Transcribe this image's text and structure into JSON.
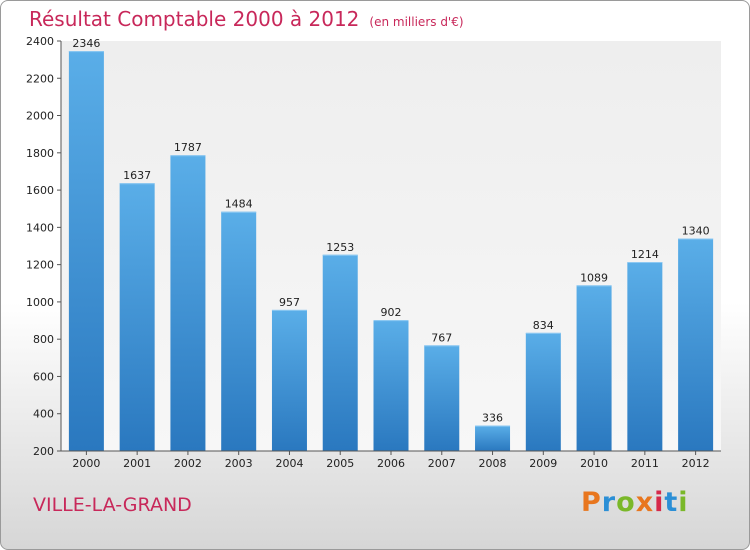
{
  "title": "Résultat Comptable 2000 à 2012",
  "unit": "(en milliers d'€)",
  "commune": "VILLE-LA-GRAND",
  "logo": "Proxiti",
  "colors": {
    "bar_top": "#5aaee8",
    "bar_bottom": "#2a78bf",
    "title": "#c8285a"
  },
  "chart_data": {
    "type": "bar",
    "title": "Résultat Comptable 2000 à 2012",
    "subtitle": "(en milliers d'€)",
    "xlabel": "",
    "ylabel": "",
    "ylim": [
      200,
      2400
    ],
    "yticks": [
      200,
      400,
      600,
      800,
      1000,
      1200,
      1400,
      1600,
      1800,
      2000,
      2200,
      2400
    ],
    "grid": false,
    "categories": [
      "2000",
      "2001",
      "2002",
      "2003",
      "2004",
      "2005",
      "2006",
      "2007",
      "2008",
      "2009",
      "2010",
      "2011",
      "2012"
    ],
    "values": [
      2346,
      1637,
      1787,
      1484,
      957,
      1253,
      902,
      767,
      336,
      834,
      1089,
      1214,
      1340
    ]
  }
}
